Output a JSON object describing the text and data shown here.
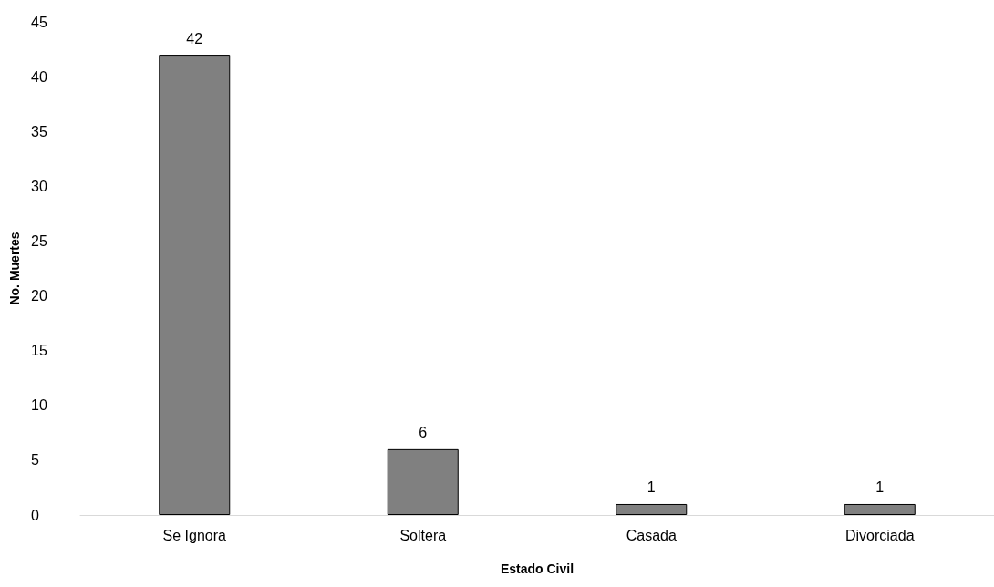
{
  "chart_data": {
    "type": "bar",
    "xlabel": "Estado Civil",
    "ylabel": "No. Muertes",
    "categories": [
      "Se Ignora",
      "Soltera",
      "Casada",
      "Divorciada"
    ],
    "values": [
      42,
      6,
      1,
      1
    ],
    "color": "#808080",
    "ylim": [
      0,
      45
    ],
    "yticks": [
      0,
      5,
      10,
      15,
      20,
      25,
      30,
      35,
      40,
      45
    ],
    "grid": false,
    "data_labels": true
  }
}
